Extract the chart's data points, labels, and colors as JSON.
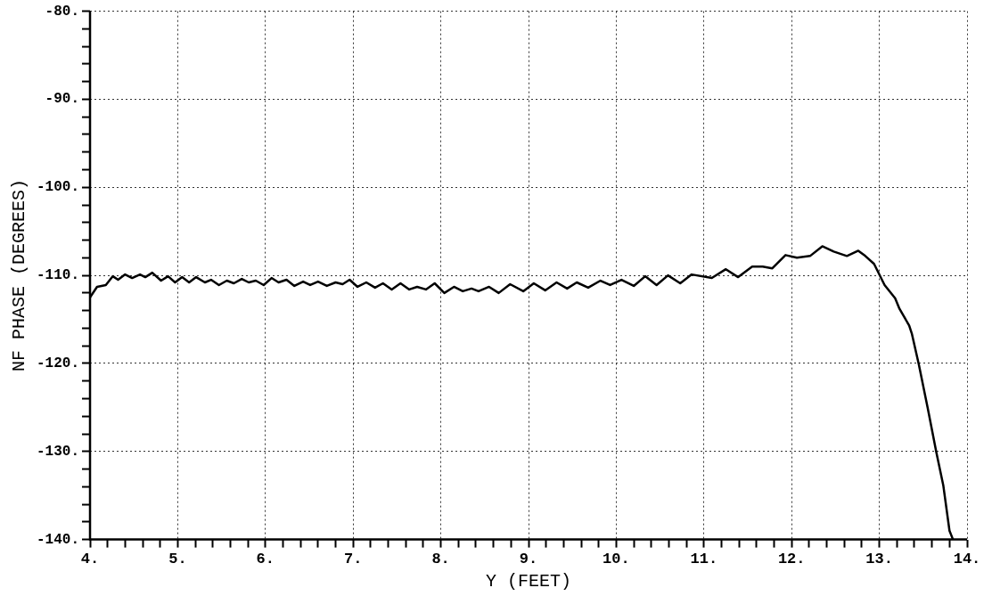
{
  "chart_data": {
    "type": "line",
    "xlabel": "Y (FEET)",
    "ylabel": "NF PHASE (DEGREES)",
    "grid": true,
    "marker": "none",
    "line_style": "solid",
    "xlim": [
      4,
      14
    ],
    "ylim": [
      -140,
      -80
    ],
    "xticks": [
      {
        "value": 4,
        "label": "4."
      },
      {
        "value": 4.2,
        "label": null
      },
      {
        "value": 4.4,
        "label": null
      },
      {
        "value": 4.6,
        "label": null
      },
      {
        "value": 4.8,
        "label": null
      },
      {
        "value": 5,
        "label": "5."
      },
      {
        "value": 5.2,
        "label": null
      },
      {
        "value": 5.4,
        "label": null
      },
      {
        "value": 5.6,
        "label": null
      },
      {
        "value": 5.8,
        "label": null
      },
      {
        "value": 6,
        "label": "6."
      },
      {
        "value": 6.2,
        "label": null
      },
      {
        "value": 6.4,
        "label": null
      },
      {
        "value": 6.6,
        "label": null
      },
      {
        "value": 6.8,
        "label": null
      },
      {
        "value": 7,
        "label": "7."
      },
      {
        "value": 7.2,
        "label": null
      },
      {
        "value": 7.4,
        "label": null
      },
      {
        "value": 7.6,
        "label": null
      },
      {
        "value": 7.8,
        "label": null
      },
      {
        "value": 8,
        "label": "8."
      },
      {
        "value": 8.2,
        "label": null
      },
      {
        "value": 8.4,
        "label": null
      },
      {
        "value": 8.6,
        "label": null
      },
      {
        "value": 8.8,
        "label": null
      },
      {
        "value": 9,
        "label": "9."
      },
      {
        "value": 9.2,
        "label": null
      },
      {
        "value": 9.4,
        "label": null
      },
      {
        "value": 9.6,
        "label": null
      },
      {
        "value": 9.8,
        "label": null
      },
      {
        "value": 10,
        "label": "10."
      },
      {
        "value": 10.2,
        "label": null
      },
      {
        "value": 10.4,
        "label": null
      },
      {
        "value": 10.6,
        "label": null
      },
      {
        "value": 10.8,
        "label": null
      },
      {
        "value": 11,
        "label": "11."
      },
      {
        "value": 11.2,
        "label": null
      },
      {
        "value": 11.4,
        "label": null
      },
      {
        "value": 11.6,
        "label": null
      },
      {
        "value": 11.8,
        "label": null
      },
      {
        "value": 12,
        "label": "12."
      },
      {
        "value": 12.2,
        "label": null
      },
      {
        "value": 12.4,
        "label": null
      },
      {
        "value": 12.6,
        "label": null
      },
      {
        "value": 12.8,
        "label": null
      },
      {
        "value": 13,
        "label": "13."
      },
      {
        "value": 13.2,
        "label": null
      },
      {
        "value": 13.4,
        "label": null
      },
      {
        "value": 13.6,
        "label": null
      },
      {
        "value": 13.8,
        "label": null
      },
      {
        "value": 14,
        "label": "14."
      }
    ],
    "yticks": [
      {
        "value": -140,
        "label": "-140."
      },
      {
        "value": -138,
        "label": null
      },
      {
        "value": -136,
        "label": null
      },
      {
        "value": -134,
        "label": null
      },
      {
        "value": -132,
        "label": null
      },
      {
        "value": -130,
        "label": "-130."
      },
      {
        "value": -128,
        "label": null
      },
      {
        "value": -126,
        "label": null
      },
      {
        "value": -124,
        "label": null
      },
      {
        "value": -122,
        "label": null
      },
      {
        "value": -120,
        "label": "-120."
      },
      {
        "value": -118,
        "label": null
      },
      {
        "value": -116,
        "label": null
      },
      {
        "value": -114,
        "label": null
      },
      {
        "value": -112,
        "label": null
      },
      {
        "value": -110,
        "label": "-110."
      },
      {
        "value": -108,
        "label": null
      },
      {
        "value": -106,
        "label": null
      },
      {
        "value": -104,
        "label": null
      },
      {
        "value": -102,
        "label": null
      },
      {
        "value": -100,
        "label": "-100."
      },
      {
        "value": -98,
        "label": null
      },
      {
        "value": -96,
        "label": null
      },
      {
        "value": -94,
        "label": null
      },
      {
        "value": -92,
        "label": null
      },
      {
        "value": -90,
        "label": "-90."
      },
      {
        "value": -88,
        "label": null
      },
      {
        "value": -86,
        "label": null
      },
      {
        "value": -84,
        "label": null
      },
      {
        "value": -82,
        "label": null
      },
      {
        "value": -80,
        "label": "-80."
      }
    ],
    "series": [
      {
        "color": "#000000",
        "x": [
          4.0,
          4.08,
          4.18,
          4.26,
          4.32,
          4.4,
          4.48,
          4.57,
          4.63,
          4.71,
          4.81,
          4.89,
          4.97,
          5.05,
          5.13,
          5.21,
          5.31,
          5.38,
          5.47,
          5.56,
          5.64,
          5.73,
          5.81,
          5.89,
          5.98,
          6.07,
          6.15,
          6.24,
          6.33,
          6.43,
          6.51,
          6.6,
          6.7,
          6.8,
          6.88,
          6.96,
          7.05,
          7.15,
          7.25,
          7.34,
          7.44,
          7.54,
          7.64,
          7.73,
          7.83,
          7.93,
          8.04,
          8.15,
          8.25,
          8.35,
          8.43,
          8.55,
          8.66,
          8.79,
          8.94,
          9.06,
          9.19,
          9.32,
          9.44,
          9.55,
          9.68,
          9.82,
          9.93,
          10.06,
          10.2,
          10.33,
          10.46,
          10.59,
          10.73,
          10.86,
          11.09,
          11.25,
          11.39,
          11.55,
          11.67,
          11.78,
          11.93,
          12.06,
          12.21,
          12.35,
          12.48,
          12.63,
          12.76,
          12.84,
          12.94,
          13.06,
          13.18,
          13.23,
          13.34,
          13.37,
          13.45,
          13.55,
          13.65,
          13.73,
          13.8,
          13.84
        ],
        "values": [
          -112.5,
          -111.3,
          -111.1,
          -110.1,
          -110.5,
          -109.9,
          -110.3,
          -109.9,
          -110.2,
          -109.7,
          -110.6,
          -110.1,
          -110.8,
          -110.2,
          -110.8,
          -110.2,
          -110.8,
          -110.5,
          -111.1,
          -110.6,
          -110.9,
          -110.4,
          -110.8,
          -110.6,
          -111.1,
          -110.3,
          -110.8,
          -110.5,
          -111.2,
          -110.7,
          -111.1,
          -110.7,
          -111.2,
          -110.8,
          -111.0,
          -110.5,
          -111.3,
          -110.8,
          -111.4,
          -110.9,
          -111.6,
          -110.9,
          -111.6,
          -111.3,
          -111.6,
          -110.9,
          -112.0,
          -111.3,
          -111.8,
          -111.5,
          -111.8,
          -111.3,
          -112.0,
          -111.0,
          -111.8,
          -110.9,
          -111.7,
          -110.8,
          -111.5,
          -110.8,
          -111.4,
          -110.6,
          -111.1,
          -110.5,
          -111.2,
          -110.1,
          -111.1,
          -110.0,
          -110.9,
          -109.9,
          -110.3,
          -109.3,
          -110.2,
          -109.0,
          -109.0,
          -109.2,
          -107.7,
          -108.0,
          -107.8,
          -106.7,
          -107.3,
          -107.8,
          -107.2,
          -107.8,
          -108.7,
          -111.1,
          -112.6,
          -113.8,
          -115.7,
          -116.6,
          -120.1,
          -125.0,
          -130.1,
          -133.9,
          -139.0,
          -140.0
        ]
      }
    ]
  }
}
